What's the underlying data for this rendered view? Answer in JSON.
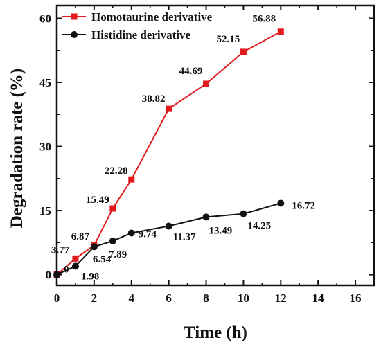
{
  "chart_data": {
    "type": "line",
    "xlabel": "Time (h)",
    "ylabel": "Degradation rate (%)",
    "xlim": [
      0,
      17
    ],
    "ylim": [
      -2.5,
      63
    ],
    "xticks": [
      "0",
      "2",
      "4",
      "6",
      "8",
      "10",
      "12",
      "14",
      "16"
    ],
    "yticks": [
      "0",
      "15",
      "30",
      "45",
      "60"
    ],
    "legend_position": "top-left",
    "series": [
      {
        "name": "Homotaurine derivative",
        "color": "#e31a1c",
        "marker": "square",
        "x": [
          0,
          1,
          2,
          3,
          4,
          6,
          8,
          10,
          12
        ],
        "values": [
          0,
          3.77,
          6.87,
          15.49,
          22.28,
          38.82,
          44.69,
          52.15,
          56.88
        ],
        "labels": [
          "",
          "3.77",
          "6.87",
          "15.49",
          "22.28",
          "38.82",
          "44.69",
          "52.15",
          "56.88"
        ]
      },
      {
        "name": "Histidine derivative",
        "color": "#111111",
        "marker": "circle",
        "x": [
          0,
          1,
          2,
          3,
          4,
          6,
          8,
          10,
          12
        ],
        "values": [
          0,
          1.98,
          6.54,
          7.89,
          9.74,
          11.37,
          13.49,
          14.25,
          16.72
        ],
        "labels": [
          "0",
          "1.98",
          "6.54",
          "7.89",
          "9.74",
          "11.37",
          "13.49",
          "14.25",
          "16.72"
        ]
      }
    ]
  }
}
